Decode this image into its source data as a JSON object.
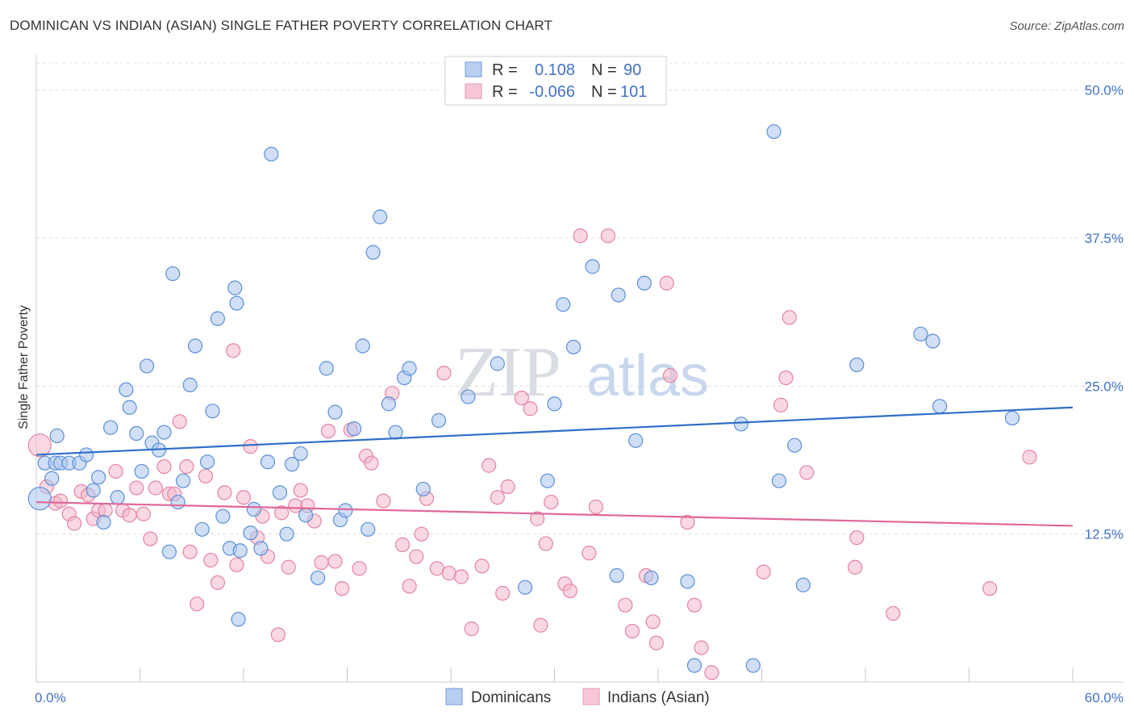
{
  "title": "DOMINICAN VS INDIAN (ASIAN) SINGLE FATHER POVERTY CORRELATION CHART",
  "source": "Source: ZipAtlas.com",
  "watermark": {
    "zip": "ZIP",
    "atlas": "atlas"
  },
  "legend": {
    "r_label": "R =",
    "n_label": "N =",
    "rows": [
      {
        "r": "0.108",
        "n": "90"
      },
      {
        "r": "-0.066",
        "n": "101"
      }
    ]
  },
  "chart_data": {
    "type": "scatter",
    "title": "DOMINICAN VS INDIAN (ASIAN) SINGLE FATHER POVERTY CORRELATION CHART",
    "xlabel": "",
    "ylabel": "Single Father Poverty",
    "xlim": [
      0,
      60
    ],
    "ylim": [
      0,
      50
    ],
    "x_tick_labels": [
      "0.0%",
      "60.0%"
    ],
    "y_ticks": [
      12.5,
      25.0,
      37.5,
      50.0
    ],
    "y_tick_labels": [
      "12.5%",
      "25.0%",
      "37.5%",
      "50.0%"
    ],
    "grid": true,
    "legend_position": "top-center",
    "colors": {
      "dominicans_fill": "#a9c4ee",
      "dominicans_stroke": "#5b8fd6",
      "dominicans_line": "#2f6fc8",
      "indians_fill": "#f6b8cb",
      "indians_stroke": "#e283a3",
      "indians_line": "#e0679a"
    },
    "series": [
      {
        "name": "Dominicans",
        "trend": {
          "x": [
            0,
            60
          ],
          "y": [
            19.2,
            23.2
          ]
        },
        "points": [
          [
            0.2,
            15.5
          ],
          [
            0.5,
            18.5
          ],
          [
            0.9,
            17.2
          ],
          [
            1.1,
            18.5
          ],
          [
            1.2,
            20.8
          ],
          [
            1.4,
            18.5
          ],
          [
            1.9,
            18.5
          ],
          [
            2.5,
            18.5
          ],
          [
            2.9,
            19.2
          ],
          [
            3.3,
            16.2
          ],
          [
            3.6,
            17.3
          ],
          [
            3.9,
            13.5
          ],
          [
            4.3,
            21.5
          ],
          [
            4.7,
            15.6
          ],
          [
            5.2,
            24.7
          ],
          [
            5.4,
            23.2
          ],
          [
            5.8,
            21.0
          ],
          [
            6.1,
            17.8
          ],
          [
            6.4,
            26.7
          ],
          [
            6.7,
            20.2
          ],
          [
            7.1,
            19.6
          ],
          [
            7.4,
            21.1
          ],
          [
            7.7,
            11.0
          ],
          [
            7.9,
            34.5
          ],
          [
            8.2,
            15.2
          ],
          [
            8.5,
            17.0
          ],
          [
            8.9,
            25.1
          ],
          [
            9.2,
            28.4
          ],
          [
            9.6,
            12.9
          ],
          [
            9.9,
            18.6
          ],
          [
            10.2,
            22.9
          ],
          [
            10.5,
            30.7
          ],
          [
            10.8,
            14.0
          ],
          [
            11.2,
            11.3
          ],
          [
            11.5,
            33.3
          ],
          [
            11.6,
            32.0
          ],
          [
            11.7,
            5.3
          ],
          [
            11.8,
            11.1
          ],
          [
            12.4,
            12.6
          ],
          [
            12.6,
            14.6
          ],
          [
            13.0,
            11.3
          ],
          [
            13.4,
            18.6
          ],
          [
            13.6,
            44.6
          ],
          [
            14.1,
            16.0
          ],
          [
            14.5,
            12.5
          ],
          [
            14.8,
            18.4
          ],
          [
            15.3,
            19.3
          ],
          [
            15.6,
            14.1
          ],
          [
            16.3,
            8.8
          ],
          [
            16.8,
            26.5
          ],
          [
            17.3,
            22.8
          ],
          [
            17.6,
            13.7
          ],
          [
            17.9,
            14.5
          ],
          [
            18.4,
            21.4
          ],
          [
            18.9,
            28.4
          ],
          [
            19.2,
            12.9
          ],
          [
            19.5,
            36.3
          ],
          [
            19.9,
            39.3
          ],
          [
            20.4,
            23.5
          ],
          [
            20.8,
            21.1
          ],
          [
            21.3,
            25.7
          ],
          [
            21.6,
            26.5
          ],
          [
            22.4,
            16.3
          ],
          [
            23.3,
            22.1
          ],
          [
            25.0,
            24.1
          ],
          [
            26.7,
            26.9
          ],
          [
            28.3,
            8.0
          ],
          [
            29.6,
            17.0
          ],
          [
            30.0,
            23.5
          ],
          [
            30.5,
            31.9
          ],
          [
            31.1,
            28.3
          ],
          [
            32.2,
            35.1
          ],
          [
            33.6,
            9.0
          ],
          [
            33.7,
            32.7
          ],
          [
            34.7,
            20.4
          ],
          [
            35.2,
            33.7
          ],
          [
            35.6,
            8.8
          ],
          [
            37.7,
            8.5
          ],
          [
            38.1,
            1.4
          ],
          [
            40.8,
            21.8
          ],
          [
            41.5,
            1.4
          ],
          [
            42.7,
            46.5
          ],
          [
            43.0,
            17.0
          ],
          [
            43.9,
            20.0
          ],
          [
            44.4,
            8.2
          ],
          [
            47.5,
            26.8
          ],
          [
            51.2,
            29.4
          ],
          [
            51.9,
            28.8
          ],
          [
            52.3,
            23.3
          ],
          [
            56.5,
            22.3
          ]
        ]
      },
      {
        "name": "Indians (Asian)",
        "trend": {
          "x": [
            0,
            60
          ],
          "y": [
            15.2,
            13.2
          ]
        },
        "points": [
          [
            0.2,
            20.0
          ],
          [
            0.6,
            16.5
          ],
          [
            1.1,
            15.1
          ],
          [
            1.4,
            15.3
          ],
          [
            1.9,
            14.2
          ],
          [
            2.2,
            13.4
          ],
          [
            2.6,
            16.1
          ],
          [
            3.0,
            15.8
          ],
          [
            3.3,
            13.8
          ],
          [
            3.6,
            14.5
          ],
          [
            4.0,
            14.5
          ],
          [
            4.6,
            17.8
          ],
          [
            5.0,
            14.5
          ],
          [
            5.4,
            14.1
          ],
          [
            5.8,
            16.4
          ],
          [
            6.2,
            14.2
          ],
          [
            6.6,
            12.1
          ],
          [
            6.9,
            16.4
          ],
          [
            7.4,
            18.2
          ],
          [
            7.7,
            15.9
          ],
          [
            8.0,
            15.9
          ],
          [
            8.3,
            22.0
          ],
          [
            8.7,
            18.2
          ],
          [
            8.9,
            11.0
          ],
          [
            9.3,
            6.6
          ],
          [
            9.8,
            17.4
          ],
          [
            10.1,
            10.3
          ],
          [
            10.5,
            8.4
          ],
          [
            10.9,
            16.0
          ],
          [
            11.4,
            28.0
          ],
          [
            11.6,
            9.9
          ],
          [
            12.0,
            15.6
          ],
          [
            12.4,
            19.9
          ],
          [
            12.8,
            12.2
          ],
          [
            13.1,
            14.0
          ],
          [
            13.4,
            10.6
          ],
          [
            14.0,
            4.0
          ],
          [
            14.2,
            14.3
          ],
          [
            14.6,
            9.7
          ],
          [
            15.0,
            14.9
          ],
          [
            15.3,
            16.2
          ],
          [
            15.7,
            14.9
          ],
          [
            16.1,
            13.6
          ],
          [
            16.5,
            10.1
          ],
          [
            16.9,
            21.2
          ],
          [
            17.3,
            10.2
          ],
          [
            17.7,
            7.9
          ],
          [
            18.2,
            21.3
          ],
          [
            18.7,
            9.6
          ],
          [
            19.1,
            19.1
          ],
          [
            19.4,
            18.5
          ],
          [
            20.1,
            15.3
          ],
          [
            20.6,
            24.4
          ],
          [
            21.2,
            11.6
          ],
          [
            21.6,
            8.1
          ],
          [
            22.0,
            10.6
          ],
          [
            22.6,
            15.5
          ],
          [
            23.2,
            9.6
          ],
          [
            23.6,
            26.1
          ],
          [
            23.9,
            9.2
          ],
          [
            24.6,
            8.9
          ],
          [
            25.2,
            4.5
          ],
          [
            25.8,
            9.8
          ],
          [
            26.2,
            18.3
          ],
          [
            26.7,
            15.6
          ],
          [
            27.0,
            7.5
          ],
          [
            27.3,
            16.5
          ],
          [
            28.1,
            24.0
          ],
          [
            28.6,
            23.1
          ],
          [
            29.2,
            4.8
          ],
          [
            29.5,
            11.7
          ],
          [
            29.8,
            15.2
          ],
          [
            30.6,
            8.3
          ],
          [
            30.9,
            7.7
          ],
          [
            31.5,
            37.7
          ],
          [
            32.0,
            10.9
          ],
          [
            32.4,
            14.8
          ],
          [
            33.1,
            37.7
          ],
          [
            34.1,
            6.5
          ],
          [
            34.5,
            4.3
          ],
          [
            35.3,
            9.0
          ],
          [
            35.7,
            5.1
          ],
          [
            35.9,
            3.3
          ],
          [
            36.5,
            33.7
          ],
          [
            36.7,
            25.9
          ],
          [
            37.7,
            13.5
          ],
          [
            38.1,
            6.5
          ],
          [
            38.5,
            2.9
          ],
          [
            39.1,
            0.8
          ],
          [
            42.1,
            9.3
          ],
          [
            43.1,
            23.4
          ],
          [
            43.4,
            25.7
          ],
          [
            43.6,
            30.8
          ],
          [
            44.6,
            17.7
          ],
          [
            47.4,
            9.7
          ],
          [
            47.5,
            12.2
          ],
          [
            49.6,
            5.8
          ],
          [
            55.2,
            7.9
          ],
          [
            57.5,
            19.0
          ],
          [
            22.3,
            12.5
          ],
          [
            29.0,
            13.8
          ]
        ]
      }
    ]
  },
  "bottom_legend": [
    "Dominicans",
    "Indians (Asian)"
  ]
}
